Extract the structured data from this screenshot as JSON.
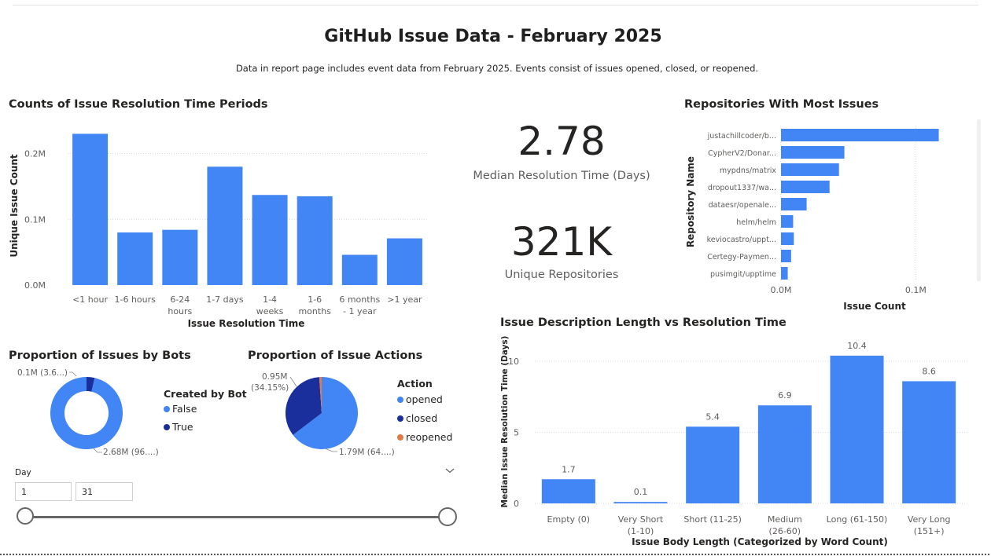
{
  "page": {
    "title": "GitHub Issue Data - February 2025",
    "subtitle": "Data in report page includes event data from February 2025. Events consist of issues opened, closed, or reopened."
  },
  "colors": {
    "primary": "#4285f4",
    "dark": "#1a2e9c",
    "orange": "#e07b45",
    "gridline": "#d9d9d9"
  },
  "kpis": {
    "median": {
      "value": "2.78",
      "label": "Median Resolution Time (Days)"
    },
    "repos": {
      "value": "321K",
      "label": "Unique Repositories"
    }
  },
  "visuals": {
    "resolution_counts": {
      "title": "Counts of Issue Resolution Time Periods"
    },
    "top_repos": {
      "title": "Repositories With Most Issues"
    },
    "bots": {
      "title": "Proportion of Issues by Bots"
    },
    "actions": {
      "title": "Proportion of Issue Actions"
    },
    "desc_length": {
      "title": "Issue Description Length vs Resolution Time"
    }
  },
  "legends": {
    "bots": {
      "title": "Created by Bot",
      "items": [
        "False",
        "True"
      ]
    },
    "actions": {
      "title": "Action",
      "items": [
        "opened",
        "closed",
        "reopened"
      ]
    }
  },
  "slicer": {
    "label": "Day",
    "min": "1",
    "max": "31",
    "icon": "chevron-down-icon"
  },
  "chart_data": [
    {
      "id": "resolution",
      "type": "bar",
      "title": "Counts of Issue Resolution Time Periods",
      "categories": [
        [
          "<1 hour"
        ],
        [
          "1-6 hours"
        ],
        [
          "6-24",
          "hours"
        ],
        [
          "1-7 days"
        ],
        [
          "1-4",
          "weeks"
        ],
        [
          "1-6",
          "months"
        ],
        [
          "6 months",
          "- 1 year"
        ],
        [
          ">1 year"
        ]
      ],
      "values": [
        0.23,
        0.08,
        0.084,
        0.18,
        0.137,
        0.135,
        0.046,
        0.071
      ],
      "xlabel": "Issue Resolution Time",
      "ylabel": "Unique Issue Count",
      "yticks": [
        0,
        0.1,
        0.2
      ],
      "ytick_labels": [
        "0.0M",
        "0.1M",
        "0.2M"
      ],
      "ylim": [
        0,
        0.24
      ],
      "unit": "M"
    },
    {
      "id": "repos",
      "type": "bar",
      "orientation": "horizontal",
      "title": "Repositories With Most Issues",
      "categories": [
        "justachillcoder/b...",
        "CypherV2/Donar...",
        "mypdns/matrix",
        "dropout1337/wa...",
        "dataesr/openale...",
        "helm/helm",
        "keviocastro/uppt...",
        "Certegy-Paymen...",
        "pusimgit/upptime"
      ],
      "values": [
        0.117,
        0.047,
        0.043,
        0.036,
        0.019,
        0.009,
        0.0095,
        0.0075,
        0.005
      ],
      "xlabel": "Issue Count",
      "ylabel": "Repository Name",
      "xticks": [
        0,
        0.1
      ],
      "xtick_labels": [
        "0.0M",
        "0.1M"
      ],
      "xlim": [
        0,
        0.14
      ],
      "unit": "M"
    },
    {
      "id": "bots",
      "type": "pie",
      "style": "donut",
      "title": "Proportion of Issues by Bots",
      "labels": [
        "False",
        "True"
      ],
      "values": [
        2.68,
        0.1
      ],
      "data_labels": [
        "2.68M (96....)",
        "0.1M (3.6...)"
      ],
      "unit": "M"
    },
    {
      "id": "actions",
      "type": "pie",
      "title": "Proportion of Issue Actions",
      "labels": [
        "opened",
        "closed",
        "reopened"
      ],
      "values": [
        1.79,
        0.95,
        0.03
      ],
      "percents": [
        64.0,
        34.15,
        1.1
      ],
      "data_labels": [
        "1.79M (64....)",
        "0.95M (34.15%)",
        ""
      ],
      "unit": "M"
    },
    {
      "id": "desc",
      "type": "bar",
      "title": "Issue Description Length vs Resolution Time",
      "categories": [
        [
          "Empty (0)"
        ],
        [
          "Very Short",
          "(1-10)"
        ],
        [
          "Short (11-25)"
        ],
        [
          "Medium",
          "(26-60)"
        ],
        [
          "Long (61-150)"
        ],
        [
          "Very Long",
          "(151+)"
        ]
      ],
      "values": [
        1.7,
        0.1,
        5.4,
        6.9,
        10.4,
        8.6
      ],
      "data_labels": [
        "1.7",
        "0.1",
        "5.4",
        "6.9",
        "10.4",
        "8.6"
      ],
      "xlabel": "Issue Body Length (Categorized by Word Count)",
      "ylabel": "Median Issue Resolution Time (Days)",
      "yticks": [
        0,
        5,
        10
      ],
      "ylim": [
        0,
        11.5
      ]
    }
  ]
}
